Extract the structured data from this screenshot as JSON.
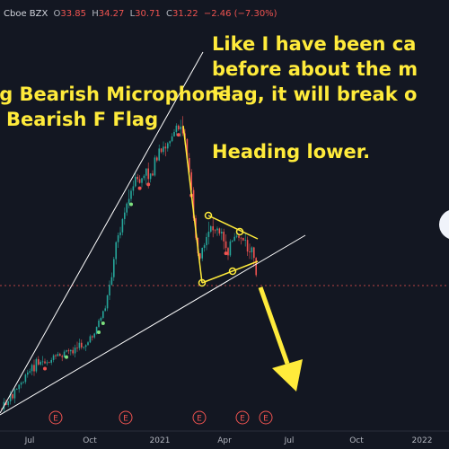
{
  "header": {
    "exchange": "Cboe BZX",
    "ohlc": [
      {
        "label": "O",
        "value": "33.85"
      },
      {
        "label": "H",
        "value": "34.27"
      },
      {
        "label": "L",
        "value": "30.71"
      },
      {
        "label": "C",
        "value": "31.22"
      }
    ],
    "change": "−2.46 (−7.30%)"
  },
  "annotations": {
    "left": [
      "ig Bearish Microphone",
      "/ Bearish F Flag"
    ],
    "right": [
      "Like I have been ca",
      "before about the m",
      "Flag, it will break o",
      "Heading lower."
    ]
  },
  "x_axis": {
    "labels": [
      "Jul",
      "Oct",
      "2021",
      "Apr",
      "Jul",
      "Oct",
      "2022"
    ]
  },
  "events": {
    "labels": [
      "E",
      "E",
      "E",
      "E",
      "E"
    ]
  }
}
